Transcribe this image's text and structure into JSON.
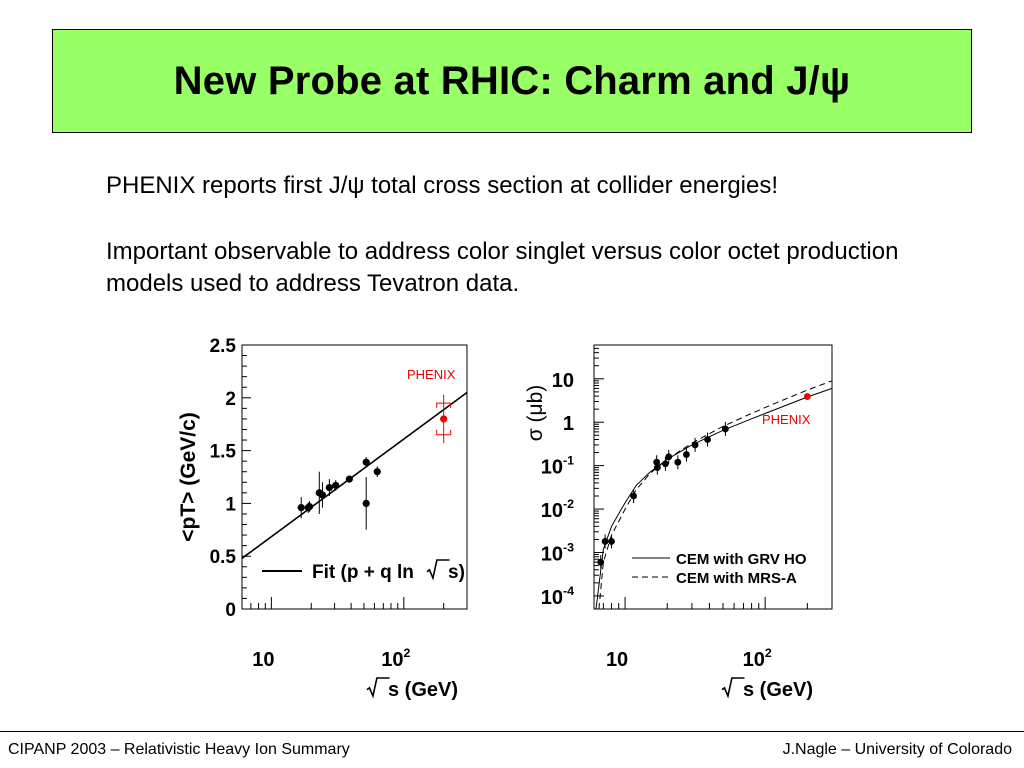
{
  "title": "New Probe at RHIC: Charm and J/ψ",
  "paragraphs": [
    "PHENIX reports first J/ψ total cross section at collider energies!",
    "Important observable to address color singlet versus color octet production models used to address Tevatron data."
  ],
  "chart_data": [
    {
      "type": "scatter",
      "ylabel": "<pT> (GeV/c)",
      "xlabel": "√s (GeV)",
      "xscale": "log",
      "xlim": [
        6,
        300
      ],
      "ylim": [
        0,
        2.5
      ],
      "y_ticks": [
        "0",
        "0.5",
        "1",
        "1.5",
        "2",
        "2.5"
      ],
      "x_ticks": [
        {
          "value": 10,
          "label": "10"
        },
        {
          "value": 100,
          "label": "10",
          "sup": "2"
        }
      ],
      "series": [
        {
          "name": "data",
          "color": "#000000",
          "points": [
            {
              "x": 16.8,
              "y": 0.96,
              "err": 0.1
            },
            {
              "x": 19.0,
              "y": 0.96,
              "err": 0.05
            },
            {
              "x": 19.4,
              "y": 0.97,
              "err": 0.05
            },
            {
              "x": 23.0,
              "y": 1.1,
              "err": 0.2
            },
            {
              "x": 24.3,
              "y": 1.08,
              "err": 0.12
            },
            {
              "x": 27.4,
              "y": 1.15,
              "err": 0.08
            },
            {
              "x": 30.6,
              "y": 1.17,
              "err": 0.05
            },
            {
              "x": 38.8,
              "y": 1.23,
              "err": 0.03
            },
            {
              "x": 52.0,
              "y": 1.39,
              "err": 0.05
            },
            {
              "x": 52.0,
              "y": 1.0,
              "err": 0.25
            },
            {
              "x": 63.0,
              "y": 1.3,
              "err": 0.05
            }
          ]
        },
        {
          "name": "PHENIX",
          "color": "#ee0000",
          "points": [
            {
              "x": 200,
              "y": 1.8,
              "err": 0.23,
              "sys": 0.15
            }
          ]
        }
      ],
      "fit": {
        "name": "Fit (p + q ln √s)",
        "x": [
          6,
          300
        ],
        "y": [
          0.48,
          2.05
        ]
      },
      "annotations": [
        {
          "text": "PHENIX",
          "color": "#ee0000"
        }
      ],
      "legend": [
        {
          "label": "Fit (p + q ln",
          "sqrt_label": "s)"
        }
      ]
    },
    {
      "type": "scatter",
      "ylabel": "σ (μb)",
      "xlabel": "√s (GeV)",
      "xscale": "log",
      "yscale": "log",
      "xlim": [
        6,
        300
      ],
      "ylim": [
        5e-05,
        60
      ],
      "y_ticks": [
        {
          "label": "10",
          "sup": "-4",
          "value": 0.0001
        },
        {
          "label": "10",
          "sup": "-3",
          "value": 0.001
        },
        {
          "label": "10",
          "sup": "-2",
          "value": 0.01
        },
        {
          "label": "10",
          "sup": "-1",
          "value": 0.1
        },
        {
          "label": "1",
          "sup": "",
          "value": 1
        },
        {
          "label": "10",
          "sup": "",
          "value": 10
        }
      ],
      "x_ticks": [
        {
          "value": 10,
          "label": "10"
        },
        {
          "value": 100,
          "label": "10",
          "sup": "2"
        }
      ],
      "series": [
        {
          "name": "data",
          "color": "#000000",
          "points": [
            {
              "x": 6.7,
              "y": 0.0006
            },
            {
              "x": 7.2,
              "y": 0.0018
            },
            {
              "x": 8.0,
              "y": 0.0018
            },
            {
              "x": 11.5,
              "y": 0.02
            },
            {
              "x": 16.8,
              "y": 0.12
            },
            {
              "x": 17.0,
              "y": 0.09
            },
            {
              "x": 19.4,
              "y": 0.11
            },
            {
              "x": 20.5,
              "y": 0.16
            },
            {
              "x": 23.8,
              "y": 0.12
            },
            {
              "x": 27.4,
              "y": 0.18
            },
            {
              "x": 31.6,
              "y": 0.3
            },
            {
              "x": 38.8,
              "y": 0.4
            },
            {
              "x": 52.0,
              "y": 0.7
            }
          ]
        },
        {
          "name": "PHENIX",
          "color": "#ee0000",
          "points": [
            {
              "x": 200,
              "y": 3.9
            }
          ]
        }
      ],
      "curves": [
        {
          "name": "CEM with GRV HO",
          "style": "solid",
          "x": [
            6.2,
            7,
            8,
            10,
            12,
            15,
            20,
            30,
            50,
            80,
            120,
            200,
            300
          ],
          "y": [
            5e-05,
            0.0012,
            0.004,
            0.014,
            0.035,
            0.07,
            0.14,
            0.3,
            0.65,
            1.2,
            2.0,
            3.8,
            6.0
          ]
        },
        {
          "name": "CEM with MRS-A",
          "style": "dashed",
          "x": [
            6.5,
            7,
            8,
            10,
            12,
            15,
            20,
            30,
            50,
            80,
            120,
            200,
            300
          ],
          "y": [
            5e-05,
            0.0006,
            0.0025,
            0.01,
            0.028,
            0.065,
            0.14,
            0.33,
            0.8,
            1.6,
            2.8,
            5.5,
            9.0
          ]
        }
      ],
      "annotations": [
        {
          "text": "PHENIX",
          "color": "#ee0000"
        }
      ],
      "legend": [
        {
          "label": "CEM with GRV HO"
        },
        {
          "label": "CEM with MRS-A"
        }
      ]
    }
  ],
  "footer": {
    "left": "CIPANP 2003 – Relativistic Heavy Ion Summary",
    "right": "J.Nagle – University of Colorado"
  }
}
